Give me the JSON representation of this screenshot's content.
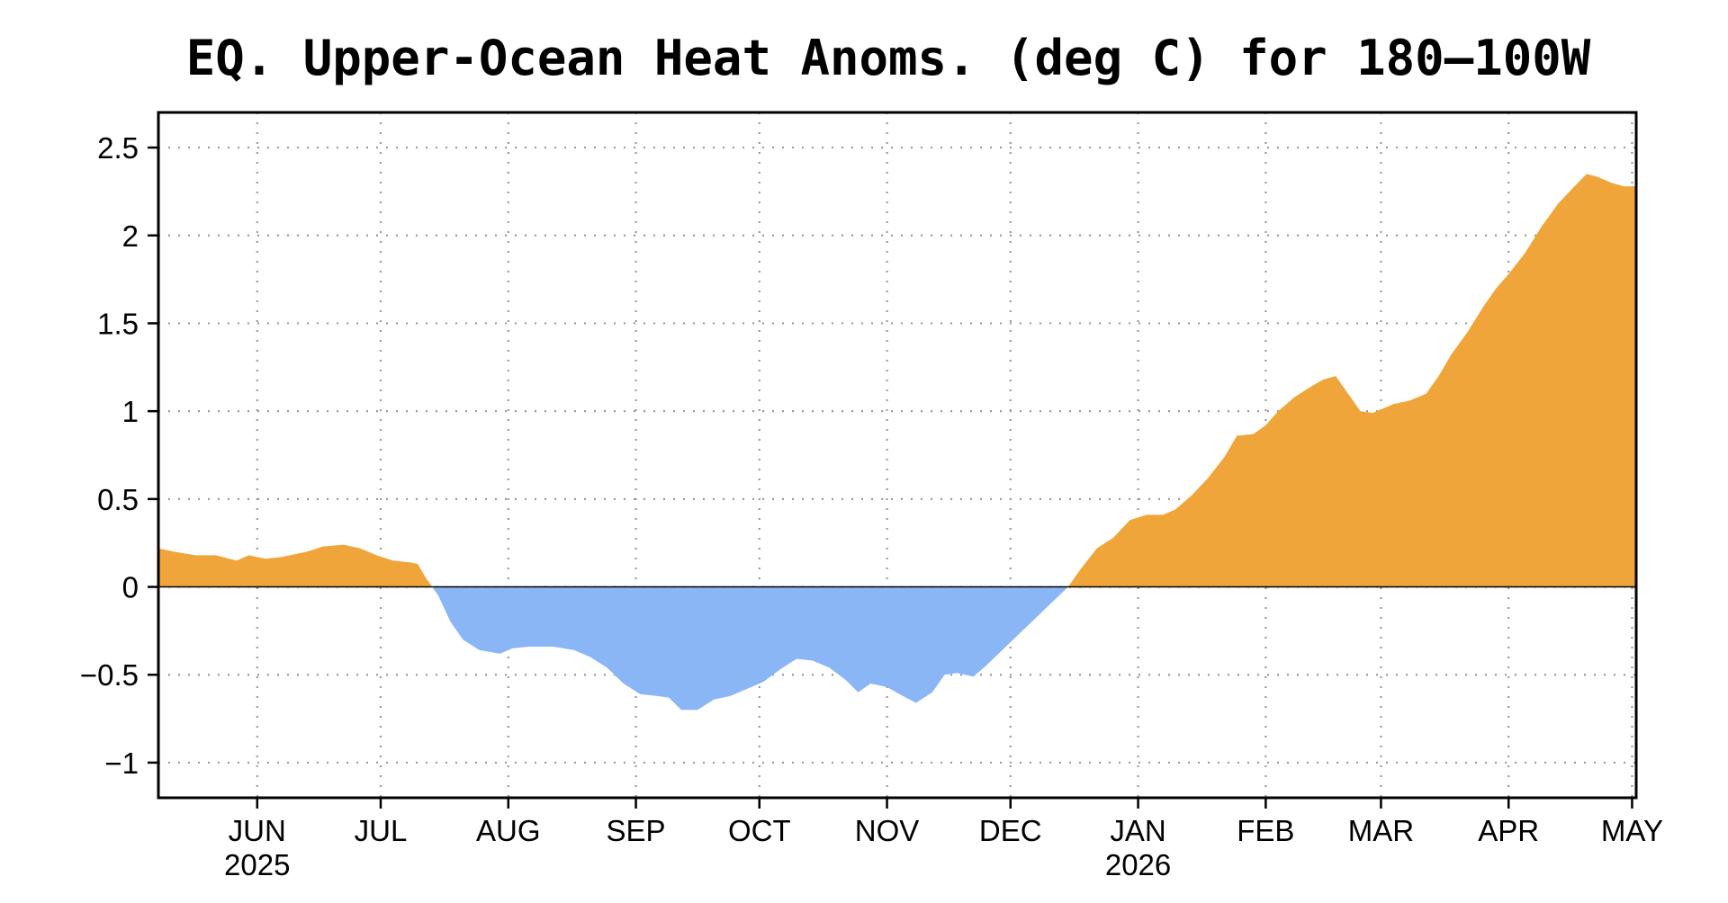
{
  "chart_data": {
    "type": "area",
    "title": "EQ. Upper-Ocean Heat Anoms. (deg C) for 180–100W",
    "xlabel": "",
    "ylabel": "",
    "grid": true,
    "legend": "none",
    "colors": {
      "positive": "#F0A53A",
      "negative": "#8AB6F5",
      "grid": "#9a9a9a",
      "frame": "#000000"
    },
    "xlim": [
      "2025-05-08",
      "2026-05-02"
    ],
    "ylim": [
      -1.2,
      2.7
    ],
    "yticks": [
      {
        "value": 2.5,
        "label": "2.5"
      },
      {
        "value": 2,
        "label": "2"
      },
      {
        "value": 1.5,
        "label": "1.5"
      },
      {
        "value": 1,
        "label": "1"
      },
      {
        "value": 0.5,
        "label": "0.5"
      },
      {
        "value": 0,
        "label": "0"
      },
      {
        "value": -0.5,
        "label": "−0.5"
      },
      {
        "value": -1,
        "label": "−1"
      }
    ],
    "xticks": [
      {
        "date": "2025-06-01",
        "label": "JUN",
        "year": "2025"
      },
      {
        "date": "2025-07-01",
        "label": "JUL"
      },
      {
        "date": "2025-08-01",
        "label": "AUG"
      },
      {
        "date": "2025-09-01",
        "label": "SEP"
      },
      {
        "date": "2025-10-01",
        "label": "OCT"
      },
      {
        "date": "2025-11-01",
        "label": "NOV"
      },
      {
        "date": "2025-12-01",
        "label": "DEC"
      },
      {
        "date": "2026-01-01",
        "label": "JAN",
        "year": "2026"
      },
      {
        "date": "2026-02-01",
        "label": "FEB"
      },
      {
        "date": "2026-03-01",
        "label": "MAR"
      },
      {
        "date": "2026-04-01",
        "label": "APR"
      },
      {
        "date": "2026-05-01",
        "label": "MAY"
      }
    ],
    "series": [
      {
        "x": [
          "2025-05-08",
          "2025-05-12",
          "2025-05-17",
          "2025-05-22",
          "2025-05-27",
          "2025-05-30",
          "2025-06-03",
          "2025-06-07",
          "2025-06-13",
          "2025-06-17",
          "2025-06-22",
          "2025-06-26",
          "2025-06-30",
          "2025-07-04",
          "2025-07-08",
          "2025-07-10",
          "2025-07-12",
          "2025-07-15",
          "2025-07-18",
          "2025-07-21",
          "2025-07-25",
          "2025-07-30",
          "2025-08-02",
          "2025-08-06",
          "2025-08-12",
          "2025-08-17",
          "2025-08-21",
          "2025-08-25",
          "2025-08-29",
          "2025-09-02",
          "2025-09-06",
          "2025-09-09",
          "2025-09-12",
          "2025-09-16",
          "2025-09-20",
          "2025-09-24",
          "2025-09-28",
          "2025-10-02",
          "2025-10-06",
          "2025-10-10",
          "2025-10-14",
          "2025-10-18",
          "2025-10-22",
          "2025-10-25",
          "2025-10-28",
          "2025-11-01",
          "2025-11-04",
          "2025-11-08",
          "2025-11-12",
          "2025-11-15",
          "2025-11-18",
          "2025-11-22",
          "2025-11-25",
          "2025-11-29",
          "2025-12-03",
          "2025-12-07",
          "2025-12-11",
          "2025-12-15",
          "2025-12-18",
          "2025-12-22",
          "2025-12-26",
          "2025-12-30",
          "2026-01-03",
          "2026-01-07",
          "2026-01-10",
          "2026-01-14",
          "2026-01-18",
          "2026-01-22",
          "2026-01-25",
          "2026-01-29",
          "2026-02-01",
          "2026-02-04",
          "2026-02-08",
          "2026-02-12",
          "2026-02-15",
          "2026-02-18",
          "2026-02-21",
          "2026-02-24",
          "2026-02-27",
          "2026-03-01",
          "2026-03-04",
          "2026-03-08",
          "2026-03-12",
          "2026-03-15",
          "2026-03-18",
          "2026-03-22",
          "2026-03-26",
          "2026-03-29",
          "2026-04-01",
          "2026-04-05",
          "2026-04-09",
          "2026-04-13",
          "2026-04-17",
          "2026-04-20",
          "2026-04-23",
          "2026-04-26",
          "2026-04-29",
          "2026-05-02"
        ],
        "y": [
          0.22,
          0.2,
          0.18,
          0.18,
          0.15,
          0.18,
          0.16,
          0.17,
          0.2,
          0.23,
          0.24,
          0.22,
          0.18,
          0.15,
          0.14,
          0.13,
          0.05,
          -0.05,
          -0.2,
          -0.3,
          -0.36,
          -0.38,
          -0.35,
          -0.34,
          -0.34,
          -0.36,
          -0.4,
          -0.46,
          -0.55,
          -0.61,
          -0.62,
          -0.63,
          -0.7,
          -0.7,
          -0.64,
          -0.62,
          -0.58,
          -0.54,
          -0.47,
          -0.41,
          -0.42,
          -0.46,
          -0.53,
          -0.6,
          -0.55,
          -0.57,
          -0.61,
          -0.66,
          -0.6,
          -0.5,
          -0.49,
          -0.51,
          -0.45,
          -0.36,
          -0.27,
          -0.18,
          -0.09,
          0.0,
          0.1,
          0.22,
          0.28,
          0.38,
          0.41,
          0.41,
          0.44,
          0.52,
          0.62,
          0.74,
          0.86,
          0.87,
          0.92,
          1.0,
          1.08,
          1.14,
          1.18,
          1.2,
          1.1,
          1.0,
          0.99,
          1.01,
          1.04,
          1.06,
          1.1,
          1.2,
          1.32,
          1.45,
          1.6,
          1.7,
          1.78,
          1.9,
          2.05,
          2.18,
          2.28,
          2.35,
          2.33,
          2.3,
          2.28,
          2.28
        ]
      }
    ]
  }
}
